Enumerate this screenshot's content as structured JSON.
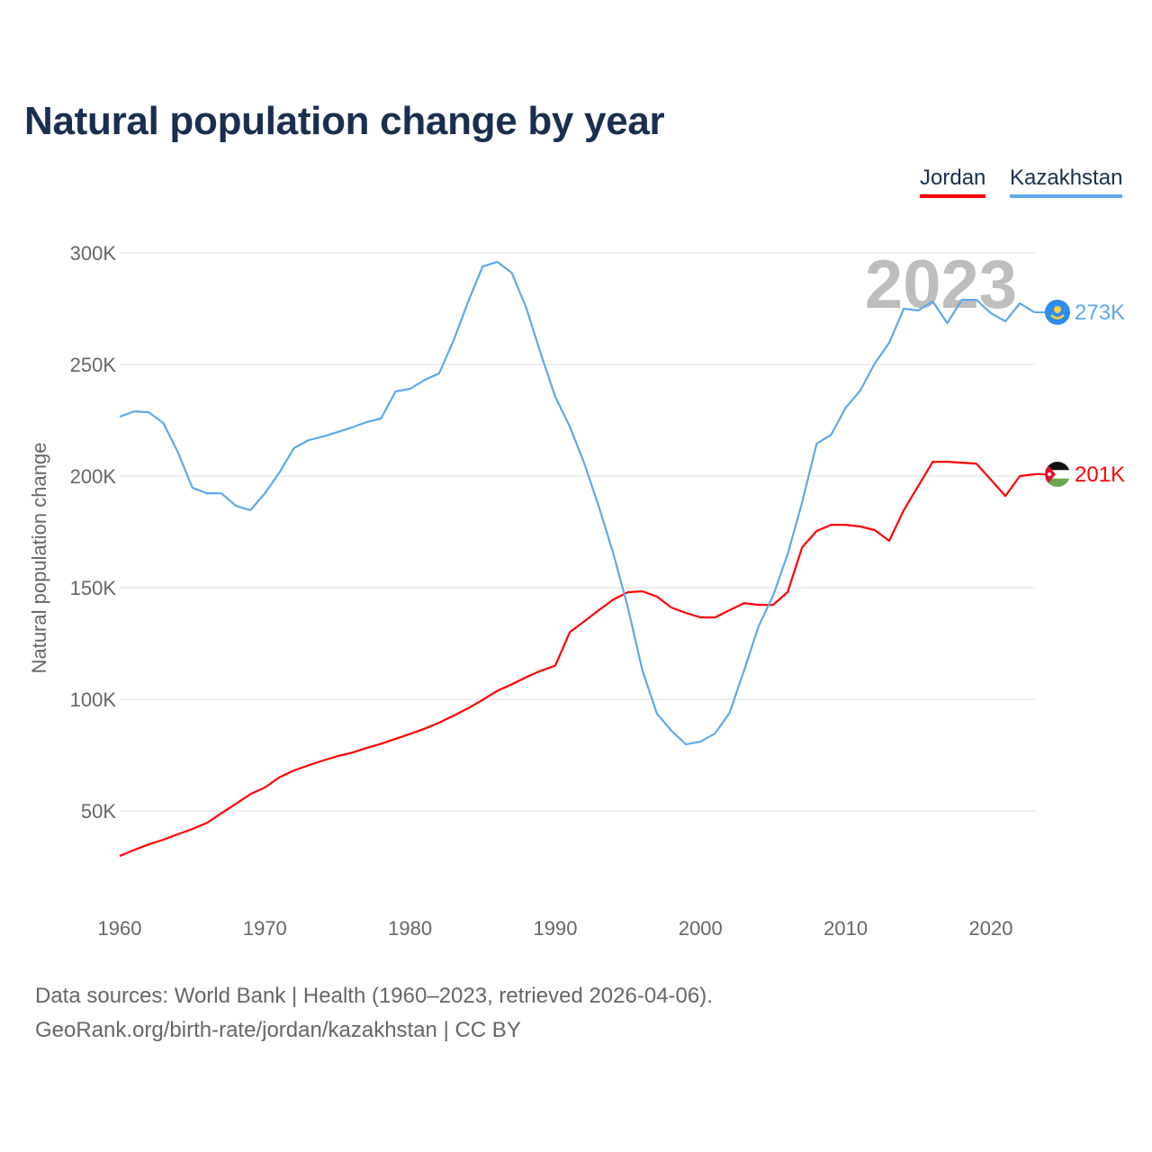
{
  "chart_data": {
    "type": "line",
    "title": "Natural population change by year",
    "xlabel": "",
    "ylabel": "Natural population change",
    "xlim": [
      1960,
      2023
    ],
    "ylim": [
      20000,
      310000
    ],
    "xticks": [
      1960,
      1970,
      1980,
      1990,
      2000,
      2010,
      2020
    ],
    "xtick_labels": [
      "1960",
      "1970",
      "1980",
      "1990",
      "2000",
      "2010",
      "2020"
    ],
    "yticks": [
      50000,
      100000,
      150000,
      200000,
      250000,
      300000
    ],
    "ytick_labels": [
      "50K",
      "100K",
      "150K",
      "200K",
      "250K",
      "300K"
    ],
    "grid": true,
    "legend_position": "top-right",
    "year_watermark": "2023",
    "x": [
      1960,
      1961,
      1962,
      1963,
      1964,
      1965,
      1966,
      1967,
      1968,
      1969,
      1970,
      1971,
      1972,
      1973,
      1974,
      1975,
      1976,
      1977,
      1978,
      1979,
      1980,
      1981,
      1982,
      1983,
      1984,
      1985,
      1986,
      1987,
      1988,
      1989,
      1990,
      1991,
      1992,
      1993,
      1994,
      1995,
      1996,
      1997,
      1998,
      1999,
      2000,
      2001,
      2002,
      2003,
      2004,
      2005,
      2006,
      2007,
      2008,
      2009,
      2010,
      2011,
      2012,
      2013,
      2014,
      2015,
      2016,
      2017,
      2018,
      2019,
      2020,
      2021,
      2022,
      2023
    ],
    "series": [
      {
        "name": "Jordan",
        "color": "#ff0000",
        "end_label": "201K",
        "flag": "jordan-flag",
        "values": [
          29800,
          32500,
          35000,
          37100,
          39500,
          41900,
          44600,
          48900,
          53200,
          57500,
          60500,
          65100,
          68100,
          70400,
          72600,
          74500,
          76100,
          78200,
          80100,
          82300,
          84500,
          86800,
          89500,
          92700,
          96000,
          99700,
          103800,
          106700,
          109900,
          112800,
          115100,
          130100,
          135000,
          139900,
          144700,
          148000,
          148400,
          146000,
          141100,
          138700,
          136700,
          136700,
          139900,
          143100,
          142300,
          142300,
          148000,
          168100,
          175400,
          178200,
          178200,
          177400,
          175800,
          171000,
          184700,
          195600,
          206400,
          206400,
          206000,
          205600,
          198400,
          191100,
          200000,
          200800
        ]
      },
      {
        "name": "Kazakhstan",
        "color": "#5ea8ec",
        "end_label": "273K",
        "flag": "kazakhstan-flag",
        "values": [
          226600,
          229000,
          228600,
          223800,
          210900,
          194800,
          192300,
          192300,
          186700,
          184700,
          192300,
          201600,
          212500,
          216100,
          217700,
          219700,
          221800,
          224200,
          225800,
          237900,
          239100,
          243100,
          246000,
          260900,
          278200,
          293900,
          296000,
          291100,
          275400,
          254800,
          235500,
          222200,
          205600,
          186300,
          165300,
          141100,
          112900,
          93600,
          85900,
          79800,
          81000,
          84700,
          93900,
          112900,
          132700,
          146400,
          164900,
          188300,
          214500,
          218500,
          230600,
          238300,
          250400,
          259700,
          275000,
          274200,
          278200,
          268500,
          279000,
          279000,
          273000,
          269300,
          277400,
          273400
        ]
      }
    ]
  },
  "footer": {
    "line1": "Data sources: World Bank | Health (1960–2023, retrieved 2026-04-06).",
    "line2": "GeoRank.org/birth-rate/jordan/kazakhstan | CC BY"
  }
}
